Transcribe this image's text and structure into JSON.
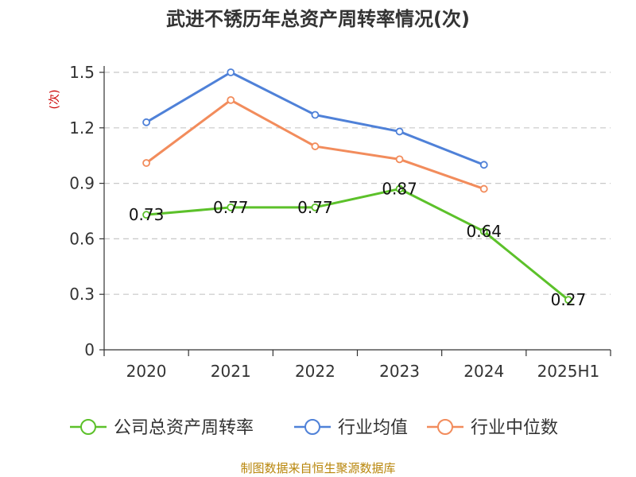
{
  "chart_data": {
    "type": "line",
    "title": "武进不锈历年总资产周转率情况(次)",
    "ylabel": "(次)",
    "xlabel": "",
    "categories": [
      "2020",
      "2021",
      "2022",
      "2023",
      "2024",
      "2025H1"
    ],
    "ylim": [
      0,
      1.5
    ],
    "yticks": [
      "0",
      "0.3",
      "0.6",
      "0.9",
      "1.2",
      "1.5"
    ],
    "ytick_values": [
      0,
      0.3,
      0.6,
      0.9,
      1.2,
      1.5
    ],
    "grid": true,
    "legend_position": "bottom",
    "series": [
      {
        "name": "公司总资产周转率",
        "color": "#5cc12a",
        "values": [
          0.73,
          0.77,
          0.77,
          0.87,
          0.64,
          0.27
        ],
        "labels": [
          "0.73",
          "0.77",
          "0.77",
          "0.87",
          "0.64",
          "0.27"
        ],
        "show_labels": true
      },
      {
        "name": "行业均值",
        "color": "#4f81d8",
        "values": [
          1.23,
          1.5,
          1.27,
          1.18,
          1.0,
          null
        ],
        "show_labels": false
      },
      {
        "name": "行业中位数",
        "color": "#f28c5c",
        "values": [
          1.01,
          1.35,
          1.1,
          1.03,
          0.87,
          null
        ],
        "show_labels": false
      }
    ],
    "source": "制图数据来自恒生聚源数据库"
  }
}
